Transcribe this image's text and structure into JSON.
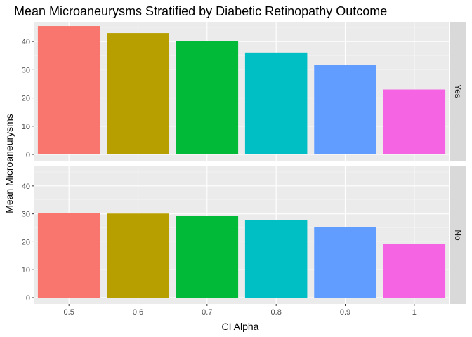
{
  "chart_data": {
    "type": "bar",
    "title": "Mean Microaneurysms Stratified by Diabetic Retinopathy Outcome",
    "xlabel": "CI Alpha",
    "ylabel": "Mean Microaneurysms",
    "categories": [
      "0.5",
      "0.6",
      "0.7",
      "0.8",
      "0.9",
      "1"
    ],
    "ylim": [
      0,
      47
    ],
    "yticks": [
      "0",
      "10",
      "20",
      "30",
      "40"
    ],
    "grid": true,
    "legend": "none",
    "facet_by": "Diabetic Retinopathy Outcome",
    "facets": [
      {
        "label": "Yes",
        "values": [
          45.5,
          43.0,
          40.2,
          36.1,
          31.6,
          23.0
        ]
      },
      {
        "label": "No",
        "values": [
          30.4,
          30.1,
          29.3,
          27.7,
          25.3,
          19.3
        ]
      }
    ],
    "colors": [
      "#F8766D",
      "#B79F00",
      "#00BA38",
      "#00BFC4",
      "#619CFF",
      "#F564E3"
    ]
  }
}
